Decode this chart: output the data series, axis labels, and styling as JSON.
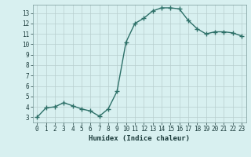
{
  "x": [
    0,
    1,
    2,
    3,
    4,
    5,
    6,
    7,
    8,
    9,
    10,
    11,
    12,
    13,
    14,
    15,
    16,
    17,
    18,
    19,
    20,
    21,
    22,
    23
  ],
  "y": [
    3.0,
    3.9,
    4.0,
    4.4,
    4.1,
    3.8,
    3.6,
    3.1,
    3.8,
    5.5,
    10.2,
    12.0,
    12.5,
    13.2,
    13.5,
    13.5,
    13.4,
    12.3,
    11.5,
    11.0,
    11.2,
    11.2,
    11.1,
    10.8
  ],
  "xlim": [
    -0.5,
    23.5
  ],
  "ylim": [
    2.5,
    13.8
  ],
  "xticks": [
    0,
    1,
    2,
    3,
    4,
    5,
    6,
    7,
    8,
    9,
    10,
    11,
    12,
    13,
    14,
    15,
    16,
    17,
    18,
    19,
    20,
    21,
    22,
    23
  ],
  "yticks": [
    3,
    4,
    5,
    6,
    7,
    8,
    9,
    10,
    11,
    12,
    13
  ],
  "xlabel": "Humidex (Indice chaleur)",
  "line_color": "#2d7068",
  "marker": "+",
  "marker_size": 4,
  "bg_color": "#d8f0f0",
  "grid_color": "#b8cece",
  "tick_fontsize": 5.5,
  "xlabel_fontsize": 6.5,
  "linewidth": 1.0
}
